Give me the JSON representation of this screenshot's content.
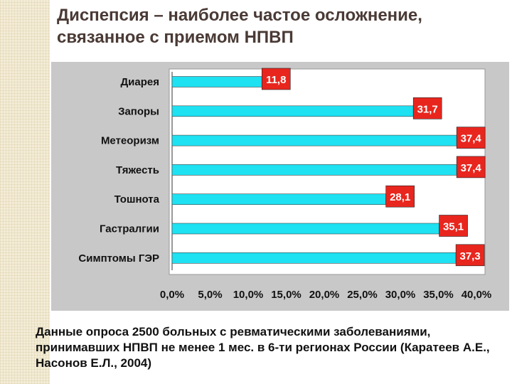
{
  "slide": {
    "title": "Диспепсия – наиболее частое осложнение, связанное с приемом НПВП",
    "note": "Данные опроса 2500 больных с ревматическими заболеваниями, принимавших НПВП не менее 1 мес. в 6-ти регионах России (Каратеев А.Е., Насонов Е.Л., 2004)"
  },
  "chart_data": {
    "type": "bar",
    "orientation": "horizontal",
    "categories": [
      "Диарея",
      "Запоры",
      "Метеоризм",
      "Тяжесть",
      "Тошнота",
      "Гастралгии",
      "Симптомы ГЭР"
    ],
    "values": [
      11.8,
      31.7,
      37.4,
      37.4,
      28.1,
      35.1,
      37.3
    ],
    "value_labels": [
      "11,8",
      "31,7",
      "37,4",
      "37,4",
      "28,1",
      "35,1",
      "37,3"
    ],
    "x_ticks": [
      "0,0%",
      "5,0%",
      "10,0%",
      "15,0%",
      "20,0%",
      "25,0%",
      "30,0%",
      "35,0%",
      "40,0%"
    ],
    "xlim": [
      0,
      40
    ],
    "grid": false,
    "bar_color": "#1ee1f2",
    "label_box_color": "#e8261e",
    "plot_background": "#ffffff",
    "frame_background": "#c8c8c8"
  }
}
